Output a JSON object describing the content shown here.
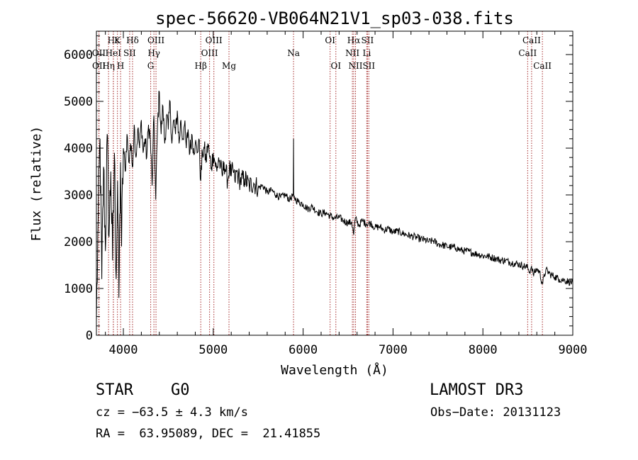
{
  "chart_data": {
    "type": "line",
    "title": "spec-56620-VB064N21V1_sp03-038.fits",
    "xlabel": "Wavelength (Å)",
    "ylabel": "Flux (relative)",
    "xlim": [
      3700,
      9000
    ],
    "ylim": [
      0,
      6500
    ],
    "xticks": [
      4000,
      5000,
      6000,
      7000,
      8000,
      9000
    ],
    "xtick_labels": [
      "4000",
      "5000",
      "6000",
      "7000",
      "8000",
      "9000"
    ],
    "yticks": [
      0,
      1000,
      2000,
      3000,
      4000,
      5000,
      6000
    ],
    "ytick_labels": [
      "0",
      "1000",
      "2000",
      "3000",
      "4000",
      "5000",
      "6000"
    ],
    "grid": false,
    "series": [
      {
        "name": "flux",
        "x": [
          3700,
          3720,
          3740,
          3760,
          3780,
          3800,
          3820,
          3840,
          3860,
          3880,
          3900,
          3920,
          3935,
          3950,
          3968,
          3980,
          4000,
          4020,
          4040,
          4060,
          4080,
          4100,
          4120,
          4140,
          4160,
          4180,
          4200,
          4220,
          4240,
          4260,
          4280,
          4300,
          4320,
          4340,
          4360,
          4380,
          4400,
          4420,
          4440,
          4460,
          4480,
          4500,
          4520,
          4540,
          4560,
          4580,
          4600,
          4620,
          4640,
          4660,
          4680,
          4700,
          4720,
          4740,
          4760,
          4780,
          4800,
          4820,
          4840,
          4861,
          4880,
          4900,
          4920,
          4940,
          4960,
          4980,
          5000,
          5020,
          5040,
          5060,
          5080,
          5100,
          5120,
          5140,
          5160,
          5180,
          5200,
          5220,
          5240,
          5260,
          5280,
          5300,
          5350,
          5400,
          5450,
          5500,
          5550,
          5600,
          5650,
          5700,
          5750,
          5800,
          5850,
          5890,
          5893,
          5896,
          5920,
          5950,
          6000,
          6050,
          6100,
          6150,
          6200,
          6250,
          6300,
          6350,
          6400,
          6450,
          6500,
          6540,
          6563,
          6580,
          6620,
          6660,
          6700,
          6750,
          6800,
          6850,
          6900,
          6950,
          7000,
          7050,
          7100,
          7150,
          7200,
          7250,
          7300,
          7350,
          7400,
          7450,
          7500,
          7550,
          7600,
          7650,
          7700,
          7750,
          7800,
          7850,
          7900,
          7950,
          8000,
          8050,
          8100,
          8150,
          8200,
          8250,
          8300,
          8350,
          8400,
          8450,
          8498,
          8520,
          8542,
          8560,
          8600,
          8630,
          8662,
          8700,
          8750,
          8800,
          8850,
          8900,
          8950,
          9000
        ],
        "y": [
          300,
          2500,
          4200,
          1200,
          3600,
          1800,
          4300,
          2100,
          3500,
          1600,
          3900,
          1200,
          3300,
          800,
          3700,
          1900,
          4000,
          3500,
          4300,
          3700,
          4100,
          3600,
          4500,
          3800,
          4400,
          4000,
          4600,
          3900,
          4200,
          3800,
          4500,
          4200,
          3200,
          4700,
          2900,
          4500,
          5200,
          4300,
          4900,
          4100,
          4700,
          4400,
          5000,
          4100,
          4600,
          4300,
          4800,
          4100,
          4600,
          4200,
          4500,
          4000,
          4400,
          3900,
          4300,
          4000,
          4100,
          3900,
          4200,
          3300,
          3900,
          4000,
          3700,
          4100,
          3800,
          3600,
          3900,
          3700,
          3500,
          3800,
          3600,
          3400,
          3700,
          3500,
          3300,
          3600,
          3400,
          3550,
          3300,
          3500,
          3400,
          3300,
          3350,
          3200,
          3250,
          3150,
          3200,
          3050,
          3100,
          3000,
          2950,
          3000,
          2900,
          3000,
          4200,
          2950,
          2900,
          2850,
          2800,
          2700,
          2750,
          2650,
          2600,
          2620,
          2550,
          2500,
          2520,
          2450,
          2400,
          2420,
          2150,
          2500,
          2350,
          2450,
          2380,
          2400,
          2300,
          2320,
          2250,
          2280,
          2200,
          2230,
          2180,
          2150,
          2120,
          2100,
          2060,
          2040,
          2000,
          2020,
          1950,
          1930,
          1900,
          1880,
          1870,
          1820,
          1800,
          1790,
          1750,
          1730,
          1700,
          1690,
          1660,
          1640,
          1600,
          1600,
          1560,
          1540,
          1520,
          1480,
          1450,
          1350,
          1480,
          1300,
          1420,
          1350,
          1100,
          1400,
          1300,
          1250,
          1200,
          1180,
          1150,
          1120
        ]
      }
    ],
    "spectral_lines": [
      {
        "label": "Hε",
        "wavelength": 3889,
        "row": 1
      },
      {
        "label": "OII",
        "wavelength": 3727,
        "row": 2
      },
      {
        "label": "OII",
        "wavelength": 3729,
        "row": 3
      },
      {
        "label": "Hη",
        "wavelength": 3835,
        "row": 3
      },
      {
        "label": "HeI",
        "wavelength": 3888,
        "row": 2
      },
      {
        "label": "K",
        "wavelength": 3934,
        "row": 1
      },
      {
        "label": "H",
        "wavelength": 3969,
        "row": 3
      },
      {
        "label": "SII",
        "wavelength": 4070,
        "row": 2
      },
      {
        "label": "Hδ",
        "wavelength": 4102,
        "row": 1
      },
      {
        "label": "OIII",
        "wavelength": 4363,
        "row": 1
      },
      {
        "label": "Hγ",
        "wavelength": 4340,
        "row": 2
      },
      {
        "label": "G",
        "wavelength": 4304,
        "row": 3
      },
      {
        "label": "Hβ",
        "wavelength": 4861,
        "row": 3
      },
      {
        "label": "OIII",
        "wavelength": 4959,
        "row": 2
      },
      {
        "label": "OIII",
        "wavelength": 5007,
        "row": 1
      },
      {
        "label": "Mg",
        "wavelength": 5175,
        "row": 3
      },
      {
        "label": "Na",
        "wavelength": 5893,
        "row": 2
      },
      {
        "label": "OI",
        "wavelength": 6300,
        "row": 1
      },
      {
        "label": "OI",
        "wavelength": 6364,
        "row": 3
      },
      {
        "label": "Hα",
        "wavelength": 6563,
        "row": 1
      },
      {
        "label": "NII",
        "wavelength": 6548,
        "row": 2
      },
      {
        "label": "NII",
        "wavelength": 6583,
        "row": 3
      },
      {
        "label": "SII",
        "wavelength": 6716,
        "row": 1
      },
      {
        "label": "Li",
        "wavelength": 6708,
        "row": 2
      },
      {
        "label": "SII",
        "wavelength": 6731,
        "row": 3
      },
      {
        "label": "CaII",
        "wavelength": 8542,
        "row": 1
      },
      {
        "label": "CaII",
        "wavelength": 8498,
        "row": 2
      },
      {
        "label": "CaII",
        "wavelength": 8662,
        "row": 3
      }
    ]
  },
  "footer": {
    "class_label": "STAR",
    "subclass_label": "G0",
    "survey_label": "LAMOST DR3",
    "redshift_text": "cz = −63.5 ± 4.3 km/s",
    "obs_date_text": "Obs−Date: 20131123",
    "coords_text": "RA =  63.95089, DEC =  21.41855"
  },
  "colors": {
    "line_marker": "#a52a2a",
    "spectrum": "#000000",
    "axis": "#000000"
  }
}
